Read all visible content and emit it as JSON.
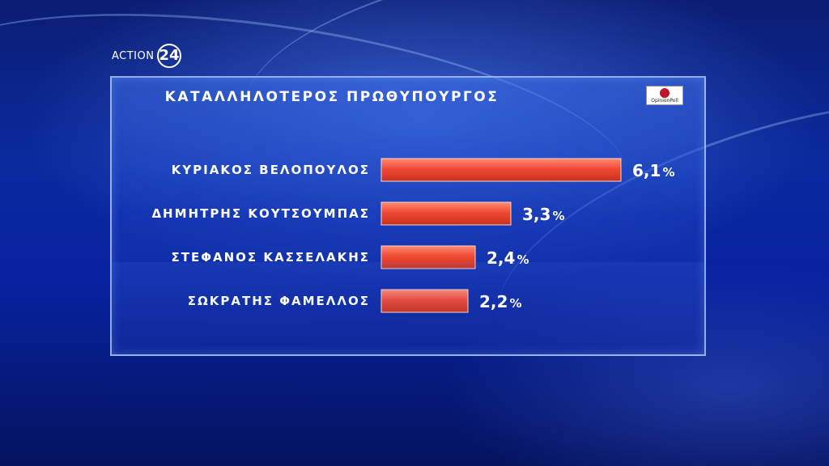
{
  "channel": {
    "logo_text": "ACTION",
    "logo_number": "24"
  },
  "pollster": {
    "name": "OpinionPoll"
  },
  "chart_data": {
    "type": "bar",
    "orientation": "horizontal",
    "title": "ΚΑΤΑΛΛΗΛΟΤΕΡΟΣ ΠΡΩΘΥΠΟΥΡΓΟΣ",
    "categories": [
      "ΚΥΡΙΑΚΟΣ ΒΕΛΟΠΟΥΛΟΣ",
      "ΔΗΜΗΤΡΗΣ ΚΟΥΤΣΟΥΜΠΑΣ",
      "ΣΤΕΦΑΝΟΣ ΚΑΣΣΕΛΑΚΗΣ",
      "ΣΩΚΡΑΤΗΣ ΦΑΜΕΛΛΟΣ"
    ],
    "values": [
      6.1,
      3.3,
      2.4,
      2.2
    ],
    "value_labels": [
      "6,1",
      "3,3",
      "2,4",
      "2,2"
    ],
    "unit": "%",
    "bar_color": "#f04a34",
    "grid": false,
    "legend": "none"
  }
}
